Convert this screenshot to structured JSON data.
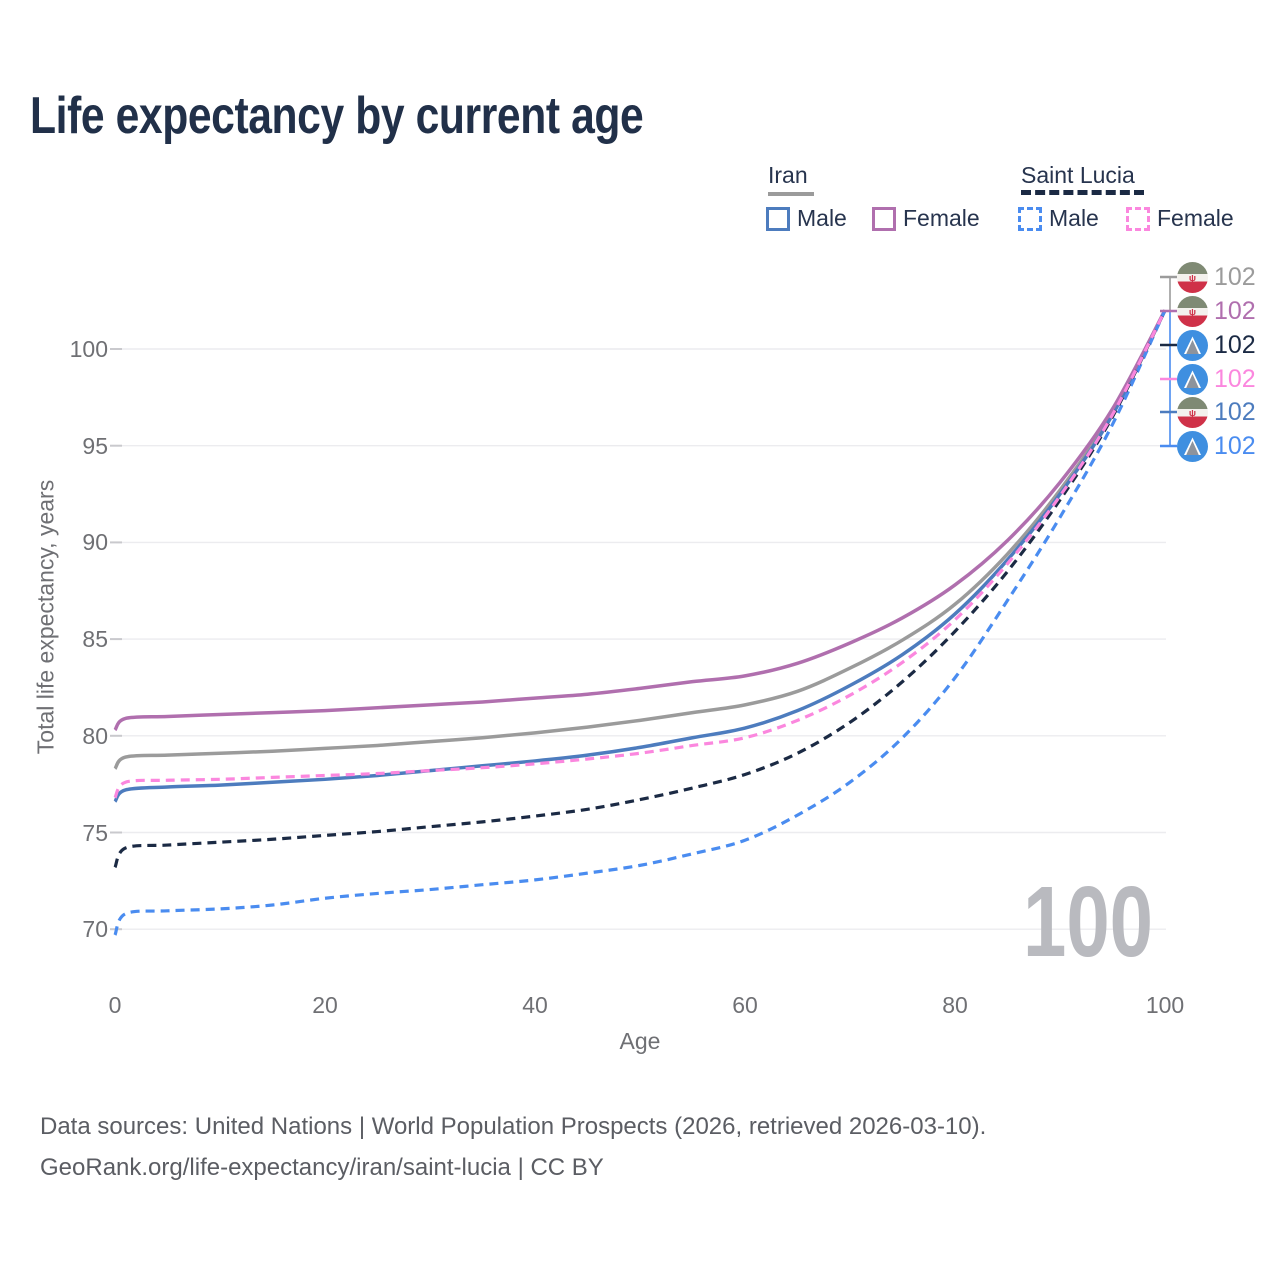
{
  "title": "Life expectancy by current age",
  "legend": {
    "iran": {
      "label": "Iran",
      "male_label": "Male",
      "female_label": "Female"
    },
    "saint_lucia": {
      "label": "Saint Lucia",
      "male_label": "Male",
      "female_label": "Female"
    }
  },
  "y_axis": {
    "label": "Total life expectancy, years",
    "ticks": [
      100,
      95,
      90,
      85,
      80,
      75,
      70
    ]
  },
  "x_axis": {
    "label": "Age",
    "ticks": [
      0,
      20,
      40,
      60,
      80,
      100
    ]
  },
  "watermark": "100",
  "end_labels": [
    {
      "value": "102",
      "series": "Iran — Total",
      "flag": "iran",
      "color_key": "iran_total"
    },
    {
      "value": "102",
      "series": "Iran — Female",
      "flag": "saint-lucia-female",
      "color_key": "iran_female"
    },
    {
      "value": "102",
      "series": "Saint Lucia — Total",
      "flag": "saint-lucia",
      "color_key": "saint_lucia_total"
    },
    {
      "value": "102",
      "series": "Saint Lucia — Female",
      "flag": "saint-lucia",
      "color_key": "saint_lucia_female"
    },
    {
      "value": "102",
      "series": "Iran — Male",
      "flag": "iran",
      "color_key": "iran_male"
    },
    {
      "value": "102",
      "series": "Saint Lucia — Male",
      "flag": "saint-lucia",
      "color_key": "saint_lucia_male"
    }
  ],
  "footer": {
    "line1": "Data sources: United Nations | World Population Prospects (2026, retrieved 2026-03-10).",
    "line2": "GeoRank.org/life-expectancy/iran/saint-lucia | CC BY"
  },
  "colors": {
    "iran_male": "#4d7cbe",
    "iran_female": "#b06fae",
    "iran_total": "#9b9b9b",
    "saint_lucia_male": "#4a8cf0",
    "saint_lucia_female": "#fb87de",
    "saint_lucia_total": "#1b2a44",
    "grid": "#ececef",
    "grid_tick": "#c9c9cd",
    "watermark": "#b9babf",
    "title_text": "#213049",
    "axis_text": "#6f7074",
    "footer_text": "#5b5d63"
  },
  "chart_data": {
    "type": "line",
    "title": "Life expectancy by current age",
    "xlabel": "Age",
    "ylabel": "Total life expectancy, years",
    "xlim": [
      0,
      100
    ],
    "ylim": [
      68.5,
      103.5
    ],
    "x_ticks": [
      0,
      20,
      40,
      60,
      80,
      100
    ],
    "y_ticks": [
      70,
      75,
      80,
      85,
      90,
      95,
      100
    ],
    "grid": "horizontal",
    "legend_position": "top-right",
    "ages": [
      0,
      1,
      5,
      10,
      15,
      20,
      25,
      30,
      35,
      40,
      45,
      50,
      55,
      60,
      65,
      70,
      75,
      80,
      85,
      90,
      95,
      100
    ],
    "series": [
      {
        "key": "iran_total",
        "name": "Iran — Total",
        "country": "Iran",
        "group": "Total",
        "style": "solid",
        "end_label": 102,
        "values": [
          78.3,
          78.9,
          79.0,
          79.1,
          79.2,
          79.35,
          79.5,
          79.7,
          79.9,
          80.15,
          80.45,
          80.8,
          81.2,
          81.6,
          82.3,
          83.5,
          84.95,
          86.8,
          89.4,
          92.7,
          96.7,
          102
        ]
      },
      {
        "key": "iran_male",
        "name": "Iran — Male",
        "country": "Iran",
        "group": "Male",
        "style": "solid",
        "end_label": 102,
        "values": [
          76.6,
          77.2,
          77.35,
          77.45,
          77.6,
          77.75,
          77.95,
          78.2,
          78.45,
          78.7,
          79.0,
          79.4,
          79.9,
          80.4,
          81.3,
          82.6,
          84.2,
          86.3,
          89.1,
          92.5,
          96.6,
          102
        ]
      },
      {
        "key": "iran_female",
        "name": "Iran — Female",
        "country": "Iran",
        "group": "Female",
        "style": "solid",
        "end_label": 102,
        "values": [
          80.3,
          80.9,
          81.0,
          81.1,
          81.2,
          81.3,
          81.45,
          81.6,
          81.75,
          81.95,
          82.15,
          82.45,
          82.8,
          83.1,
          83.75,
          84.8,
          86.1,
          87.8,
          90.1,
          93.1,
          96.9,
          102
        ]
      },
      {
        "key": "saint_lucia_male",
        "name": "Saint Lucia — Male",
        "country": "Saint Lucia",
        "group": "Male",
        "style": "dashed",
        "end_label": 102,
        "values": [
          69.7,
          70.8,
          70.95,
          71.05,
          71.25,
          71.6,
          71.85,
          72.05,
          72.3,
          72.55,
          72.9,
          73.3,
          73.9,
          74.6,
          75.9,
          77.6,
          79.9,
          83.0,
          87.0,
          91.3,
          96.1,
          102
        ]
      },
      {
        "key": "saint_lucia_total",
        "name": "Saint Lucia — Total",
        "country": "Saint Lucia",
        "group": "Total",
        "style": "dashed",
        "end_label": 102,
        "values": [
          73.2,
          74.2,
          74.35,
          74.5,
          74.65,
          74.85,
          75.05,
          75.3,
          75.55,
          75.85,
          76.2,
          76.7,
          77.3,
          78.0,
          79.1,
          80.7,
          82.8,
          85.4,
          88.5,
          92.2,
          96.5,
          102
        ]
      },
      {
        "key": "saint_lucia_female",
        "name": "Saint Lucia — Female",
        "country": "Saint Lucia",
        "group": "Female",
        "style": "dashed",
        "end_label": 102,
        "values": [
          76.8,
          77.6,
          77.7,
          77.75,
          77.85,
          77.95,
          78.05,
          78.2,
          78.35,
          78.55,
          78.8,
          79.1,
          79.5,
          79.9,
          80.8,
          82.1,
          83.8,
          86.0,
          88.9,
          92.4,
          96.6,
          102
        ]
      }
    ]
  }
}
